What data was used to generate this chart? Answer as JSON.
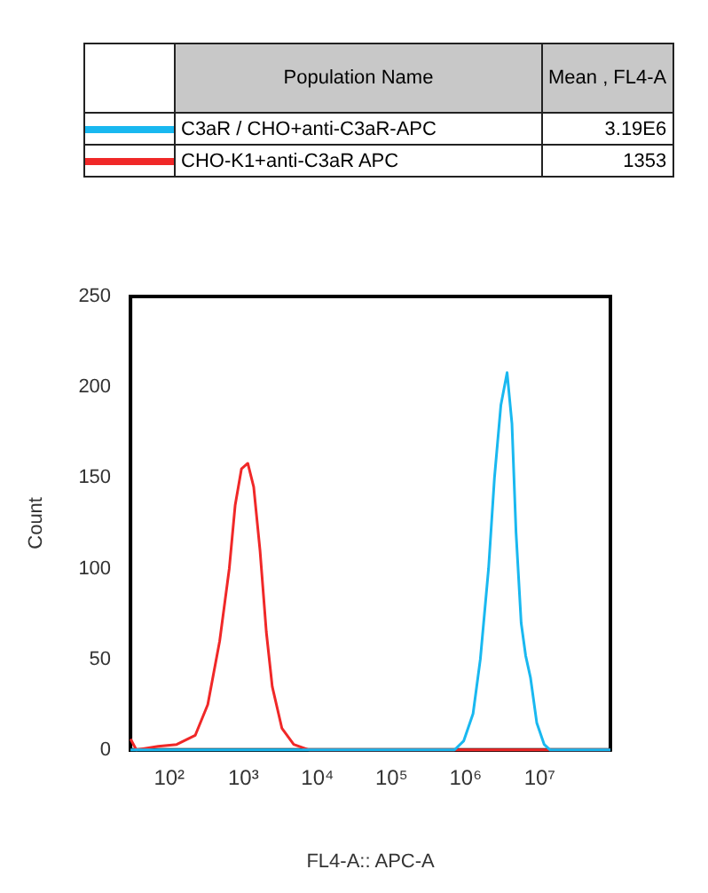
{
  "chart_data": {
    "type": "line",
    "xlabel": "FL4-A:: APC-A",
    "ylabel": "Count",
    "log": "x",
    "legend": "top",
    "grid": false,
    "annotations": [
      "Population Name",
      "Mean , FL4-A",
      "3.19E6",
      "1353"
    ],
    "xlim": [
      30,
      90000000
    ],
    "ylim": [
      0,
      250
    ],
    "xticks": [
      {
        "value": 100,
        "label": "10²"
      },
      {
        "value": 1000,
        "label": "10³"
      },
      {
        "value": 10000,
        "label": "10⁴"
      },
      {
        "value": 100000,
        "label": "10⁵"
      },
      {
        "value": 1000000,
        "label": "10⁶"
      },
      {
        "value": 10000000,
        "label": "10⁷"
      }
    ],
    "yticks": [
      0,
      50,
      100,
      150,
      200,
      250
    ],
    "series": [
      {
        "name": "C3aR / CHO+anti-C3aR-APC",
        "color": "#19b8f0",
        "x": [
          30,
          708000,
          944000,
          1260000,
          1580000,
          2040000,
          2450000,
          2990000,
          3630000,
          4220000,
          4790000,
          5620000,
          6460000,
          7500000,
          9120000,
          11500000,
          13800000,
          90000000
        ],
        "values": [
          0,
          0,
          5,
          20,
          50,
          100,
          150,
          190,
          208,
          180,
          120,
          70,
          52,
          40,
          15,
          3,
          0,
          0
        ]
      },
      {
        "name": "CHO-K1+anti-C3aR APC",
        "color": "#f02828",
        "x": [
          30,
          36,
          71,
          126,
          224,
          331,
          479,
          646,
          776,
          944,
          1148,
          1380,
          1679,
          2042,
          2455,
          3311,
          4786,
          7762,
          90000000
        ],
        "values": [
          6,
          0,
          2,
          3,
          8,
          25,
          60,
          100,
          135,
          155,
          158,
          145,
          110,
          65,
          35,
          12,
          3,
          0,
          0
        ]
      }
    ]
  }
}
